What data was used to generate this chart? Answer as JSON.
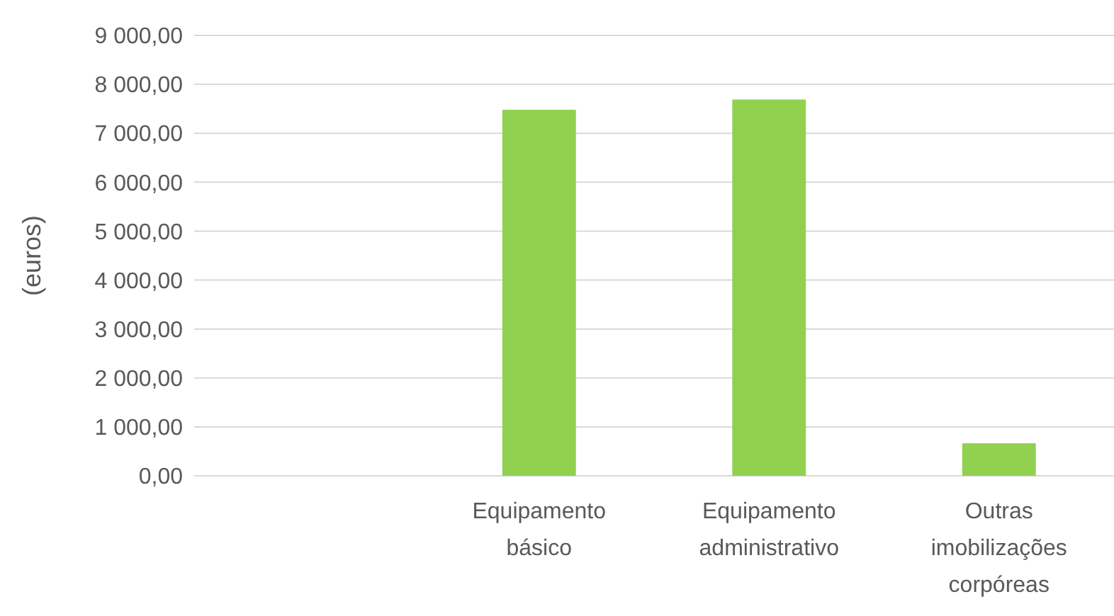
{
  "chart_data": {
    "type": "bar",
    "ylabel": "(euros)",
    "categories": [
      null,
      "Equipamento básico",
      "Equipamento administrativo",
      "Outras imobilizações corpóreas"
    ],
    "values": [
      null,
      7480,
      7690,
      665
    ],
    "color": "#92d050",
    "ylim": [
      0,
      9000
    ],
    "yticks": [
      {
        "value": 0,
        "label": "0,00"
      },
      {
        "value": 1000,
        "label": "1 000,00"
      },
      {
        "value": 2000,
        "label": "2 000,00"
      },
      {
        "value": 3000,
        "label": "3 000,00"
      },
      {
        "value": 4000,
        "label": "4 000,00"
      },
      {
        "value": 5000,
        "label": "5 000,00"
      },
      {
        "value": 6000,
        "label": "6 000,00"
      },
      {
        "value": 7000,
        "label": "7 000,00"
      },
      {
        "value": 8000,
        "label": "8 000,00"
      },
      {
        "value": 9000,
        "label": "9 000,00"
      }
    ],
    "grid": "y"
  }
}
